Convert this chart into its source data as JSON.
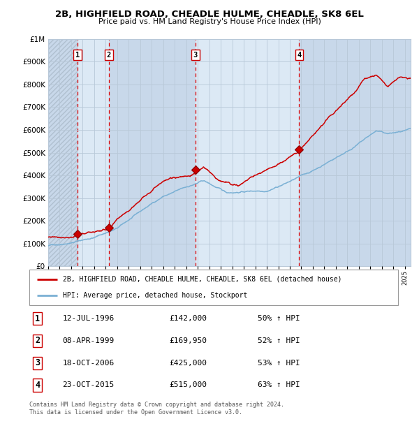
{
  "title": "2B, HIGHFIELD ROAD, CHEADLE HULME, CHEADLE, SK8 6EL",
  "subtitle": "Price paid vs. HM Land Registry's House Price Index (HPI)",
  "legend_line1": "2B, HIGHFIELD ROAD, CHEADLE HULME, CHEADLE, SK8 6EL (detached house)",
  "legend_line2": "HPI: Average price, detached house, Stockport",
  "footer": "Contains HM Land Registry data © Crown copyright and database right 2024.\nThis data is licensed under the Open Government Licence v3.0.",
  "transactions": [
    {
      "num": 1,
      "date": "12-JUL-1996",
      "price": 142000,
      "pct": "50%",
      "dir": "↑"
    },
    {
      "num": 2,
      "date": "08-APR-1999",
      "price": 169950,
      "pct": "52%",
      "dir": "↑"
    },
    {
      "num": 3,
      "date": "18-OCT-2006",
      "price": 425000,
      "pct": "53%",
      "dir": "↑"
    },
    {
      "num": 4,
      "date": "23-OCT-2015",
      "price": 515000,
      "pct": "63%",
      "dir": "↑"
    }
  ],
  "transaction_dates_decimal": [
    1996.54,
    1999.27,
    2006.8,
    2015.81
  ],
  "transaction_prices": [
    142000,
    169950,
    425000,
    515000
  ],
  "ylim": [
    0,
    1000000
  ],
  "yticks": [
    0,
    100000,
    200000,
    300000,
    400000,
    500000,
    600000,
    700000,
    800000,
    900000,
    1000000
  ],
  "xlim_start": 1994.0,
  "xlim_end": 2025.5,
  "background_color": "#ffffff",
  "plot_bg_color": "#dce9f5",
  "grid_color": "#b8c8d8",
  "red_line_color": "#cc0000",
  "blue_line_color": "#7ab0d4",
  "dashed_line_color": "#dd0000",
  "marker_color": "#cc0000",
  "marker_edge_color": "#880000",
  "shade_regions": [
    [
      1994.0,
      1996.54
    ],
    [
      1996.54,
      1999.27
    ],
    [
      1999.27,
      2006.8
    ],
    [
      2006.8,
      2015.81
    ],
    [
      2015.81,
      2025.5
    ]
  ],
  "shade_colors": [
    "#c8d8ea",
    "#dce9f5",
    "#c8d8ea",
    "#dce9f5",
    "#c8d8ea"
  ]
}
